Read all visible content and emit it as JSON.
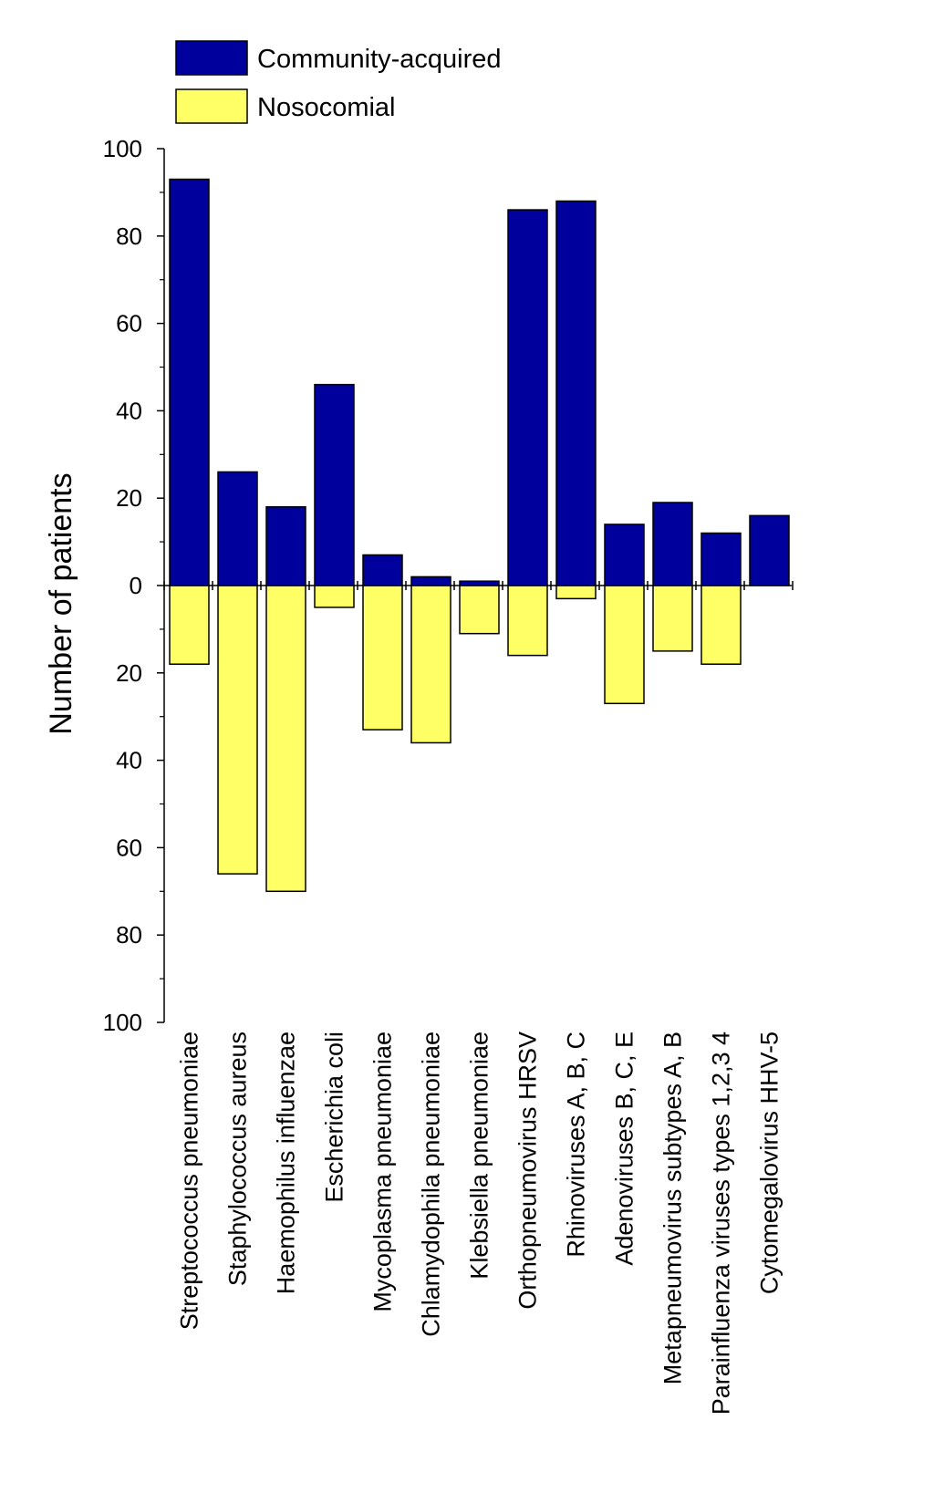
{
  "chart_data": {
    "type": "bar",
    "orientation": "diverging",
    "ylabel": "Number of patients",
    "ylim": [
      -100,
      100
    ],
    "y_ticks": [
      100,
      80,
      60,
      40,
      20,
      0,
      20,
      40,
      60,
      80,
      100
    ],
    "legend_position": "top-left",
    "grid": false,
    "categories": [
      "Streptococcus pneumoniae",
      "Staphylococcus aureus",
      "Haemophilus influenzae",
      "Escherichia coli",
      "Mycoplasma pneumoniae",
      "Chlamydophila pneumoniae",
      "Klebsiella pneumoniae",
      "Orthopneumovirus HRSV",
      "Rhinoviruses A, B, C",
      "Adenoviruses B, C, E",
      "Metapneumovirus subtypes A, B",
      "Parainfluenza viruses types 1,2,3 4",
      "Cytomegalovirus HHV-5"
    ],
    "series": [
      {
        "name": "Community-acquired",
        "color": "#00009c",
        "direction": "up",
        "values": [
          93,
          26,
          18,
          46,
          7,
          2,
          1,
          86,
          88,
          14,
          19,
          12,
          16
        ]
      },
      {
        "name": "Nosocomial",
        "color": "#ffff66",
        "direction": "down",
        "values": [
          18,
          66,
          70,
          5,
          33,
          36,
          11,
          16,
          3,
          27,
          15,
          18,
          0
        ]
      }
    ]
  }
}
